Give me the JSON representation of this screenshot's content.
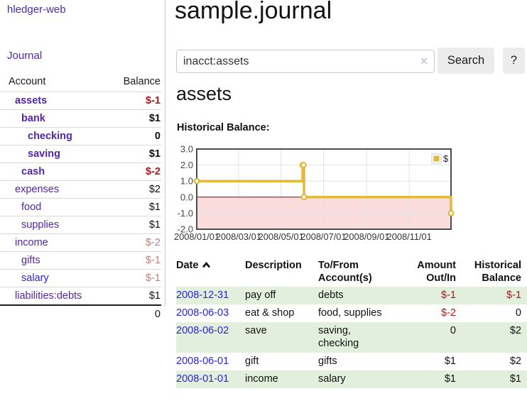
{
  "app": {
    "brand": "hledger-web",
    "nav_journal": "Journal"
  },
  "colors": {
    "accent_purple": "#5226a5",
    "link_blue": "#2a23d8",
    "negative_strong": "#a31c1c",
    "negative_soft": "#bd7d7d",
    "row_stripe_green": "#e3efdd",
    "chart_line_gold": "#e2b93c",
    "negative_region_pink": "#fbdcdc",
    "zero_line_dark_red": "#8b0000"
  },
  "sidebar": {
    "accounts_table": {
      "headers": {
        "account": "Account",
        "balance": "Balance"
      },
      "rows": [
        {
          "account": "assets",
          "balance": "$-1",
          "depth": 1,
          "bold": true,
          "balance_color": "negative-strong"
        },
        {
          "account": "bank",
          "balance": "$1",
          "depth": 2,
          "bold": true,
          "balance_color": "normal"
        },
        {
          "account": "checking",
          "balance": "0",
          "depth": 3,
          "bold": true,
          "balance_color": "normal"
        },
        {
          "account": "saving",
          "balance": "$1",
          "depth": 3,
          "bold": true,
          "balance_color": "normal"
        },
        {
          "account": "cash",
          "balance": "$-2",
          "depth": 2,
          "bold": true,
          "balance_color": "negative-strong"
        },
        {
          "account": "expenses",
          "balance": "$2",
          "depth": 1,
          "bold": false,
          "balance_color": "normal"
        },
        {
          "account": "food",
          "balance": "$1",
          "depth": 2,
          "bold": false,
          "balance_color": "normal"
        },
        {
          "account": "supplies",
          "balance": "$1",
          "depth": 2,
          "bold": false,
          "balance_color": "normal"
        },
        {
          "account": "income",
          "balance": "$-2",
          "depth": 1,
          "bold": false,
          "balance_color": "negative-soft"
        },
        {
          "account": "gifts",
          "balance": "$-1",
          "depth": 2,
          "bold": false,
          "balance_color": "negative-soft"
        },
        {
          "account": "salary",
          "balance": "$-1",
          "depth": 2,
          "bold": false,
          "balance_color": "negative-soft",
          "link_color": "blue"
        },
        {
          "account": "liabilities:debts",
          "balance": "$1",
          "depth": 1,
          "bold": false,
          "balance_color": "normal"
        }
      ],
      "total": "0"
    }
  },
  "header": {
    "title": "sample.journal"
  },
  "search": {
    "value": "inacct:assets",
    "clear_icon": "✕",
    "button": "Search",
    "help_button": "?"
  },
  "account_page": {
    "heading": "assets",
    "chart_label": "Historical Balance:"
  },
  "chart_data": {
    "type": "line",
    "title": "Historical Balance",
    "style": "steps",
    "series": [
      {
        "name": "$",
        "color": "#e2b93c",
        "points": [
          [
            "2008/01/01",
            1
          ],
          [
            "2008/06/01",
            2
          ],
          [
            "2008/06/02",
            2
          ],
          [
            "2008/06/03",
            0
          ],
          [
            "2008/12/31",
            -1
          ]
        ]
      }
    ],
    "xlim": [
      "2008/01/01",
      "2008/12/31"
    ],
    "ylim": [
      -2,
      3
    ],
    "xticks": [
      "2008/01/01",
      "2008/03/01",
      "2008/05/01",
      "2008/07/01",
      "2008/09/01",
      "2008/11/01"
    ],
    "yticks": [
      "3.0",
      "2.0",
      "1.0",
      "0.0",
      "-1.0",
      "-2.0"
    ],
    "grid": true,
    "legend": {
      "label": "$",
      "position": "top-right"
    },
    "negative_region_color": "#fbdcdc",
    "zero_line_color": "#8b0000"
  },
  "register": {
    "headers": {
      "date": "Date",
      "description": "Description",
      "account": "To/From Account(s)",
      "amount": "Amount Out/In",
      "balance": "Historical Balance"
    },
    "sort": {
      "column": "date",
      "direction": "ascending",
      "icon": "chevron-up-icon"
    },
    "rows": [
      {
        "date": "2008-12-31",
        "description": "pay off",
        "account": "debts",
        "amount": "$-1",
        "balance": "$-1"
      },
      {
        "date": "2008-06-03",
        "description": "eat & shop",
        "account": "food, supplies",
        "amount": "$-2",
        "balance": "0"
      },
      {
        "date": "2008-06-02",
        "description": "save",
        "account": "saving, checking",
        "amount": "0",
        "balance": "$2"
      },
      {
        "date": "2008-06-01",
        "description": "gift",
        "account": "gifts",
        "amount": "$1",
        "balance": "$2"
      },
      {
        "date": "2008-01-01",
        "description": "income",
        "account": "salary",
        "amount": "$1",
        "balance": "$1"
      }
    ]
  }
}
